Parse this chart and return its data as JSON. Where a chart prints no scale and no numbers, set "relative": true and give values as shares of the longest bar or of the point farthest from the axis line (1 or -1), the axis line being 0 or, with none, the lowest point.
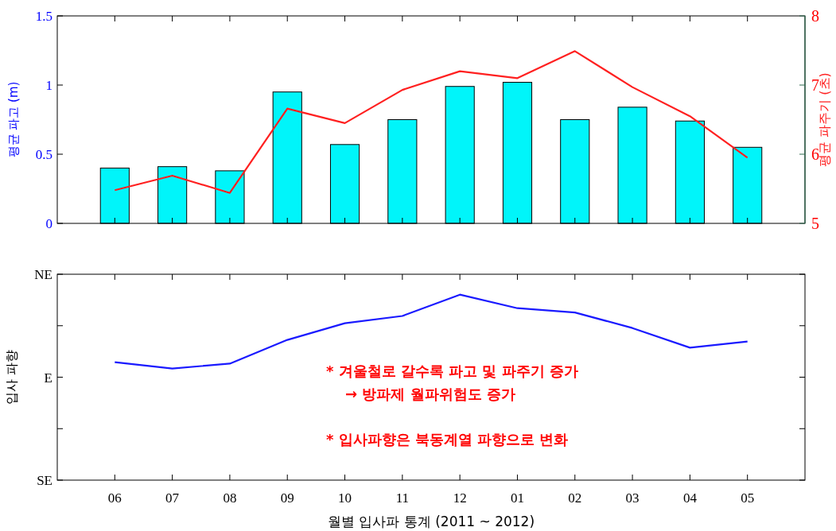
{
  "chart_data": [
    {
      "type": "bar",
      "categories": [
        "06",
        "07",
        "08",
        "09",
        "10",
        "11",
        "12",
        "01",
        "02",
        "03",
        "04",
        "05"
      ],
      "series": [
        {
          "color": "#00f5fa",
          "values": [
            0.4,
            0.41,
            0.38,
            0.95,
            0.57,
            0.75,
            0.99,
            1.02,
            0.75,
            0.84,
            0.74,
            0.55
          ]
        },
        {
          "type": "line",
          "axis": "y2",
          "color": "#ff2020",
          "values": [
            5.48,
            5.69,
            5.44,
            6.66,
            6.45,
            6.93,
            7.2,
            7.1,
            7.49,
            6.97,
            6.55,
            5.95
          ]
        }
      ],
      "ylabel": "평균 파고 (m)",
      "y2label": "평균 파주기 (초)",
      "ylim": [
        0,
        1.5
      ],
      "yticks": [
        0,
        0.5,
        1,
        1.5
      ],
      "y2lim": [
        5,
        8
      ],
      "y2ticks": [
        5,
        6,
        7,
        8
      ],
      "tick_labels": "y"
    },
    {
      "type": "line",
      "categories": [
        "06",
        "07",
        "08",
        "09",
        "10",
        "11",
        "12",
        "01",
        "02",
        "03",
        "04",
        "05"
      ],
      "series": [
        {
          "color": "#1a1aff",
          "values": [
            0.636,
            0.602,
            0.628,
            0.756,
            0.846,
            0.885,
            1,
            0.927,
            0.904,
            0.82,
            0.714,
            0.747
          ]
        }
      ],
      "relative": true,
      "ylabel": "입사 파향",
      "xlabel": "월별 입사파 통계 (2011 ~ 2012)",
      "annotations": [
        "NE",
        "E",
        "SE",
        "* 겨울철로 갈수록 파고 및 파주기 증가",
        "→ 방파제 월파위험도 증가",
        "* 입사파향은 북동계열 파향으로 변화"
      ]
    }
  ]
}
